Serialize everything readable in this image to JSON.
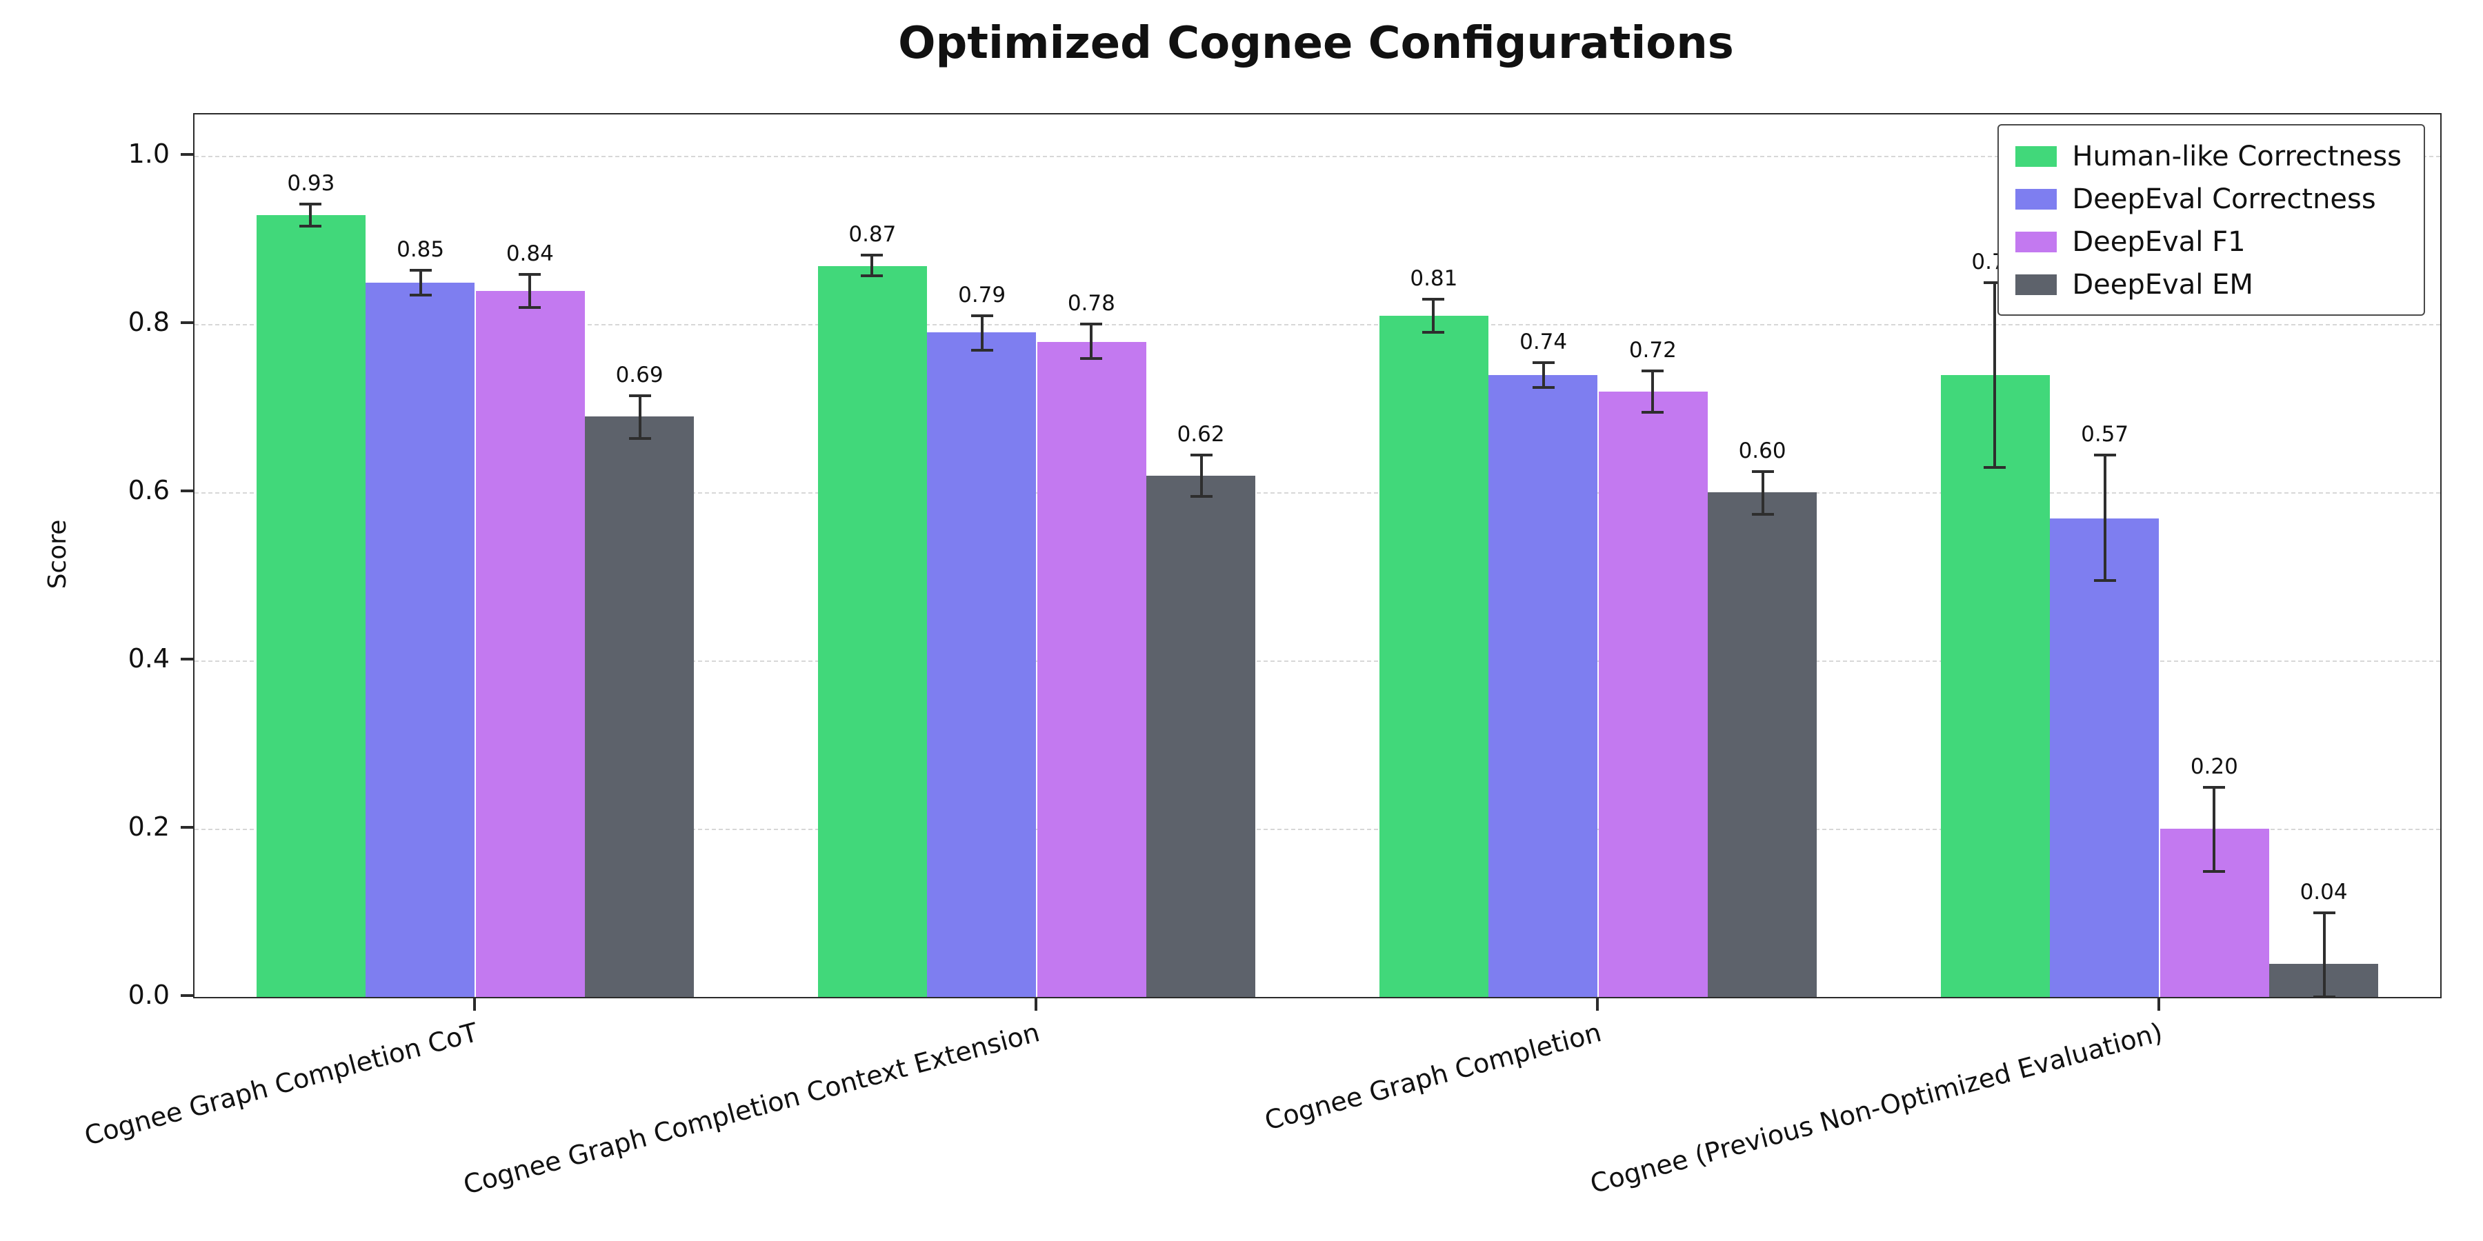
{
  "title": "Optimized Cognee Configurations",
  "chart_data": {
    "type": "bar",
    "title": "Optimized Cognee Configurations",
    "xlabel": "",
    "ylabel": "Score",
    "ylim": [
      0,
      1.05
    ],
    "yticks": [
      0.0,
      0.2,
      0.4,
      0.6,
      0.8,
      1.0
    ],
    "grid": "horizontal-dashed",
    "legend_position": "upper right",
    "error_bars": true,
    "categories": [
      "Cognee Graph Completion CoT",
      "Cognee Graph Completion Context Extension",
      "Cognee Graph Completion",
      "Cognee (Previous Non-Optimized Evaluation)"
    ],
    "series": [
      {
        "name": "Human-like Correctness",
        "color": "#41d87a",
        "values": [
          0.93,
          0.87,
          0.81,
          0.74
        ],
        "errors": [
          0.013,
          0.012,
          0.02,
          0.11
        ]
      },
      {
        "name": "DeepEval Correctness",
        "color": "#7e7ef0",
        "values": [
          0.85,
          0.79,
          0.74,
          0.57
        ],
        "errors": [
          0.015,
          0.02,
          0.015,
          0.075
        ]
      },
      {
        "name": "DeepEval F1",
        "color": "#c379f0",
        "values": [
          0.84,
          0.78,
          0.72,
          0.2
        ],
        "errors": [
          0.02,
          0.02,
          0.025,
          0.05
        ]
      },
      {
        "name": "DeepEval EM",
        "color": "#5d626b",
        "values": [
          0.69,
          0.62,
          0.6,
          0.04
        ],
        "errors": [
          0.025,
          0.025,
          0.025,
          0.06
        ]
      }
    ],
    "colors": {
      "grid": "#d7d7d7",
      "spine": "#2b2b2b",
      "error_bar": "#2e2e2e",
      "text": "#111111",
      "background": "#ffffff"
    }
  }
}
